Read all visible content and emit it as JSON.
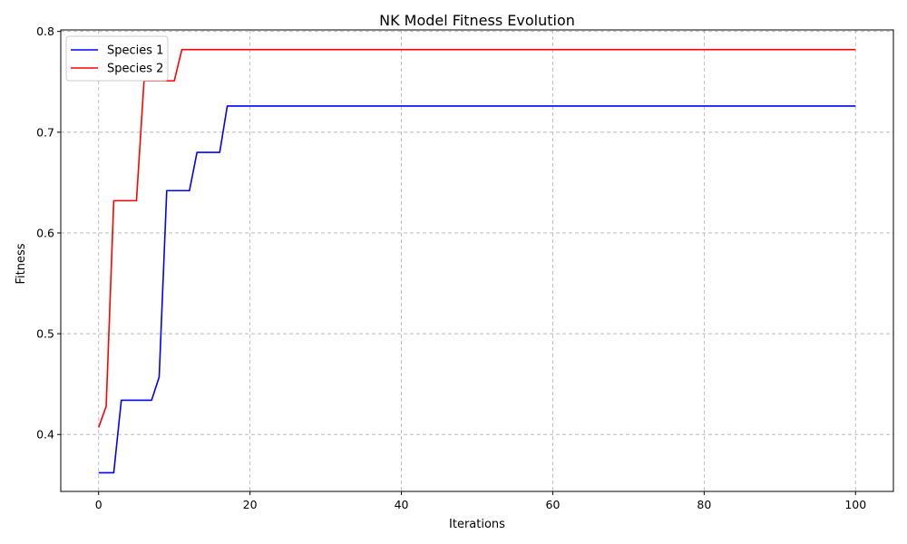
{
  "chart_data": {
    "type": "line",
    "title": "NK Model Fitness Evolution",
    "xlabel": "Iterations",
    "ylabel": "Fitness",
    "xlim": [
      -5,
      105
    ],
    "ylim": [
      0.3435,
      0.8015
    ],
    "xticks": [
      0,
      20,
      40,
      60,
      80,
      100
    ],
    "yticks": [
      0.4,
      0.5,
      0.6,
      0.7,
      0.8
    ],
    "xtick_labels": [
      "0",
      "20",
      "40",
      "60",
      "80",
      "100"
    ],
    "ytick_labels": [
      "0.4",
      "0.5",
      "0.6",
      "0.7",
      "0.8"
    ],
    "grid": true,
    "legend_position": "upper-left",
    "series": [
      {
        "name": "Species 1",
        "color": "#0000ff",
        "x": [
          0,
          1,
          2,
          3,
          4,
          5,
          6,
          7,
          8,
          9,
          10,
          11,
          12,
          13,
          14,
          15,
          16,
          17,
          100
        ],
        "y": [
          0.362,
          0.362,
          0.362,
          0.434,
          0.434,
          0.434,
          0.434,
          0.434,
          0.457,
          0.642,
          0.642,
          0.642,
          0.642,
          0.68,
          0.68,
          0.68,
          0.68,
          0.726,
          0.726
        ]
      },
      {
        "name": "Species 2",
        "color": "#ff0000",
        "x": [
          0,
          1,
          2,
          3,
          4,
          5,
          6,
          7,
          8,
          9,
          10,
          11,
          100
        ],
        "y": [
          0.407,
          0.428,
          0.632,
          0.632,
          0.632,
          0.632,
          0.751,
          0.751,
          0.751,
          0.751,
          0.751,
          0.782,
          0.782
        ]
      }
    ]
  }
}
